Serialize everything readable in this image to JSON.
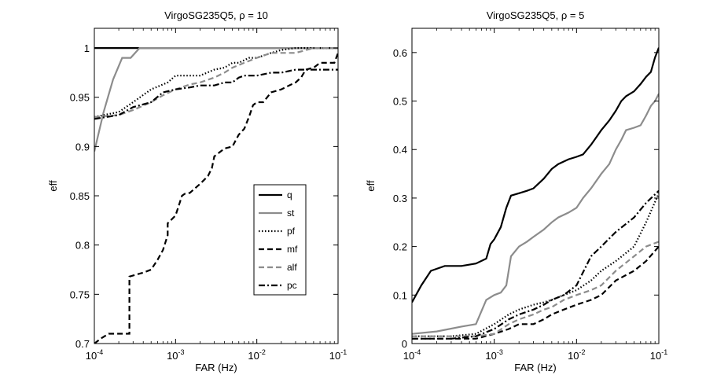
{
  "chart_data": [
    {
      "type": "line",
      "title": "VirgoSG235Q5, ρ = 10",
      "xlabel": "FAR (Hz)",
      "ylabel": "eff",
      "xscale": "log",
      "xlim": [
        0.0001,
        0.1
      ],
      "ylim": [
        0.7,
        1.02
      ],
      "xtick_labels": [
        {
          "base": "10",
          "exp": "-4"
        },
        {
          "base": "10",
          "exp": "-3"
        },
        {
          "base": "10",
          "exp": "-2"
        },
        {
          "base": "10",
          "exp": "-1"
        }
      ],
      "ytick_labels": [
        "0.7",
        "0.75",
        "0.8",
        "0.85",
        "0.9",
        "0.95",
        "1"
      ],
      "legend_position": "center-right",
      "series": [
        {
          "name": "q",
          "color": "#000000",
          "dash": "solid",
          "x": [
            0.0001,
            0.1
          ],
          "y": [
            1.0,
            1.0
          ]
        },
        {
          "name": "st",
          "color": "#8c8c8c",
          "dash": "solid",
          "x": [
            0.0001,
            0.00013,
            0.00017,
            0.00022,
            0.00028,
            0.00036,
            0.00048,
            0.0006,
            0.1
          ],
          "y": [
            0.895,
            0.935,
            0.968,
            0.99,
            0.99,
            1.0,
            1.0,
            1.0,
            1.0
          ]
        },
        {
          "name": "pf",
          "color": "#000000",
          "dash": "dotted",
          "x": [
            0.0001,
            0.0002,
            0.0003,
            0.0005,
            0.0008,
            0.001,
            0.0015,
            0.002,
            0.003,
            0.004,
            0.005,
            0.006,
            0.008,
            0.01,
            0.015,
            0.02,
            0.03,
            0.05,
            0.1
          ],
          "y": [
            0.93,
            0.935,
            0.945,
            0.958,
            0.965,
            0.972,
            0.972,
            0.972,
            0.978,
            0.98,
            0.985,
            0.985,
            0.99,
            0.99,
            0.995,
            0.998,
            1.0,
            1.0,
            1.0
          ]
        },
        {
          "name": "mf",
          "color": "#000000",
          "dash": "dashed",
          "x": [
            0.0001,
            0.00012,
            0.00015,
            0.00018,
            0.00022,
            0.00027,
            0.00027,
            0.0004,
            0.0005,
            0.0006,
            0.0007,
            0.0008,
            0.0008,
            0.001,
            0.0012,
            0.0013,
            0.0015,
            0.002,
            0.0025,
            0.0028,
            0.003,
            0.004,
            0.005,
            0.006,
            0.007,
            0.008,
            0.009,
            0.01,
            0.012,
            0.015,
            0.02,
            0.025,
            0.03,
            0.035,
            0.04,
            0.05,
            0.06,
            0.07,
            0.08,
            0.09,
            0.1
          ],
          "y": [
            0.7,
            0.705,
            0.71,
            0.71,
            0.71,
            0.71,
            0.768,
            0.772,
            0.775,
            0.785,
            0.795,
            0.81,
            0.822,
            0.83,
            0.85,
            0.852,
            0.853,
            0.862,
            0.87,
            0.878,
            0.89,
            0.898,
            0.9,
            0.912,
            0.918,
            0.93,
            0.942,
            0.945,
            0.945,
            0.955,
            0.958,
            0.962,
            0.965,
            0.97,
            0.978,
            0.98,
            0.985,
            0.985,
            0.985,
            0.985,
            0.995
          ]
        },
        {
          "name": "alf",
          "color": "#8c8c8c",
          "dash": "dashed",
          "x": [
            0.0001,
            0.0002,
            0.0003,
            0.0005,
            0.0007,
            0.001,
            0.0015,
            0.002,
            0.003,
            0.004,
            0.005,
            0.007,
            0.01,
            0.015,
            0.02,
            0.03,
            0.05,
            0.1
          ],
          "y": [
            0.93,
            0.932,
            0.937,
            0.945,
            0.952,
            0.958,
            0.963,
            0.965,
            0.97,
            0.975,
            0.98,
            0.985,
            0.99,
            0.995,
            0.995,
            0.995,
            1.0,
            1.0
          ]
        },
        {
          "name": "pc",
          "color": "#000000",
          "dash": "dashdot",
          "x": [
            0.0001,
            0.0002,
            0.0003,
            0.0005,
            0.0007,
            0.001,
            0.0015,
            0.002,
            0.003,
            0.004,
            0.005,
            0.006,
            0.007,
            0.01,
            0.015,
            0.02,
            0.03,
            0.05,
            0.1
          ],
          "y": [
            0.928,
            0.932,
            0.94,
            0.945,
            0.955,
            0.958,
            0.96,
            0.962,
            0.962,
            0.965,
            0.965,
            0.97,
            0.972,
            0.972,
            0.975,
            0.975,
            0.978,
            0.978,
            0.978
          ]
        }
      ]
    },
    {
      "type": "line",
      "title": "VirgoSG235Q5, ρ = 5",
      "xlabel": "FAR (Hz)",
      "ylabel": "eff",
      "xscale": "log",
      "xlim": [
        0.0001,
        0.1
      ],
      "ylim": [
        0,
        0.65
      ],
      "xtick_labels": [
        {
          "base": "10",
          "exp": "-4"
        },
        {
          "base": "10",
          "exp": "-3"
        },
        {
          "base": "10",
          "exp": "-2"
        },
        {
          "base": "10",
          "exp": "-1"
        }
      ],
      "ytick_labels": [
        "0",
        "0.1",
        "0.2",
        "0.3",
        "0.4",
        "0.5",
        "0.6"
      ],
      "series": [
        {
          "name": "q",
          "color": "#000000",
          "dash": "solid",
          "x": [
            0.0001,
            0.00013,
            0.00017,
            0.00025,
            0.0004,
            0.0006,
            0.0008,
            0.0009,
            0.001,
            0.0012,
            0.0014,
            0.0016,
            0.002,
            0.0025,
            0.003,
            0.004,
            0.005,
            0.006,
            0.008,
            0.01,
            0.012,
            0.015,
            0.02,
            0.025,
            0.03,
            0.035,
            0.04,
            0.05,
            0.06,
            0.07,
            0.08,
            0.09,
            0.1
          ],
          "y": [
            0.085,
            0.12,
            0.15,
            0.16,
            0.16,
            0.165,
            0.175,
            0.205,
            0.215,
            0.24,
            0.28,
            0.305,
            0.31,
            0.315,
            0.32,
            0.34,
            0.36,
            0.37,
            0.38,
            0.385,
            0.39,
            0.41,
            0.44,
            0.46,
            0.48,
            0.5,
            0.51,
            0.52,
            0.535,
            0.55,
            0.56,
            0.59,
            0.61
          ]
        },
        {
          "name": "st",
          "color": "#8c8c8c",
          "dash": "solid",
          "x": [
            0.0001,
            0.0002,
            0.0004,
            0.0006,
            0.0008,
            0.001,
            0.0012,
            0.0014,
            0.0016,
            0.002,
            0.0025,
            0.003,
            0.004,
            0.005,
            0.006,
            0.008,
            0.01,
            0.012,
            0.015,
            0.02,
            0.025,
            0.03,
            0.035,
            0.04,
            0.05,
            0.06,
            0.07,
            0.08,
            0.09,
            0.1
          ],
          "y": [
            0.02,
            0.025,
            0.035,
            0.04,
            0.09,
            0.1,
            0.105,
            0.12,
            0.18,
            0.2,
            0.21,
            0.22,
            0.235,
            0.25,
            0.26,
            0.27,
            0.28,
            0.3,
            0.32,
            0.35,
            0.37,
            0.4,
            0.42,
            0.44,
            0.445,
            0.45,
            0.47,
            0.49,
            0.5,
            0.515
          ]
        },
        {
          "name": "pf",
          "color": "#000000",
          "dash": "dotted",
          "x": [
            0.0001,
            0.0003,
            0.0006,
            0.001,
            0.0015,
            0.002,
            0.003,
            0.004,
            0.005,
            0.007,
            0.01,
            0.015,
            0.02,
            0.03,
            0.05,
            0.07,
            0.1
          ],
          "y": [
            0.015,
            0.015,
            0.02,
            0.04,
            0.06,
            0.07,
            0.08,
            0.085,
            0.09,
            0.1,
            0.11,
            0.13,
            0.15,
            0.17,
            0.2,
            0.25,
            0.31
          ]
        },
        {
          "name": "mf",
          "color": "#000000",
          "dash": "dashed",
          "x": [
            0.0001,
            0.0003,
            0.0006,
            0.001,
            0.0015,
            0.002,
            0.003,
            0.004,
            0.005,
            0.007,
            0.01,
            0.015,
            0.02,
            0.03,
            0.05,
            0.07,
            0.1
          ],
          "y": [
            0.01,
            0.01,
            0.01,
            0.02,
            0.03,
            0.04,
            0.04,
            0.05,
            0.06,
            0.07,
            0.08,
            0.09,
            0.1,
            0.13,
            0.15,
            0.17,
            0.2
          ]
        },
        {
          "name": "alf",
          "color": "#8c8c8c",
          "dash": "dashed",
          "x": [
            0.0001,
            0.0003,
            0.0006,
            0.001,
            0.0015,
            0.002,
            0.003,
            0.004,
            0.005,
            0.007,
            0.01,
            0.015,
            0.02,
            0.03,
            0.05,
            0.07,
            0.1
          ],
          "y": [
            0.015,
            0.015,
            0.015,
            0.02,
            0.04,
            0.05,
            0.06,
            0.07,
            0.075,
            0.09,
            0.1,
            0.11,
            0.12,
            0.15,
            0.18,
            0.2,
            0.21
          ]
        },
        {
          "name": "pc",
          "color": "#000000",
          "dash": "dashdot",
          "x": [
            0.0001,
            0.0003,
            0.0006,
            0.001,
            0.0015,
            0.002,
            0.003,
            0.004,
            0.005,
            0.007,
            0.01,
            0.015,
            0.02,
            0.03,
            0.05,
            0.07,
            0.1
          ],
          "y": [
            0.01,
            0.01,
            0.015,
            0.03,
            0.05,
            0.06,
            0.07,
            0.08,
            0.09,
            0.1,
            0.12,
            0.18,
            0.2,
            0.23,
            0.26,
            0.29,
            0.315
          ]
        }
      ]
    }
  ]
}
